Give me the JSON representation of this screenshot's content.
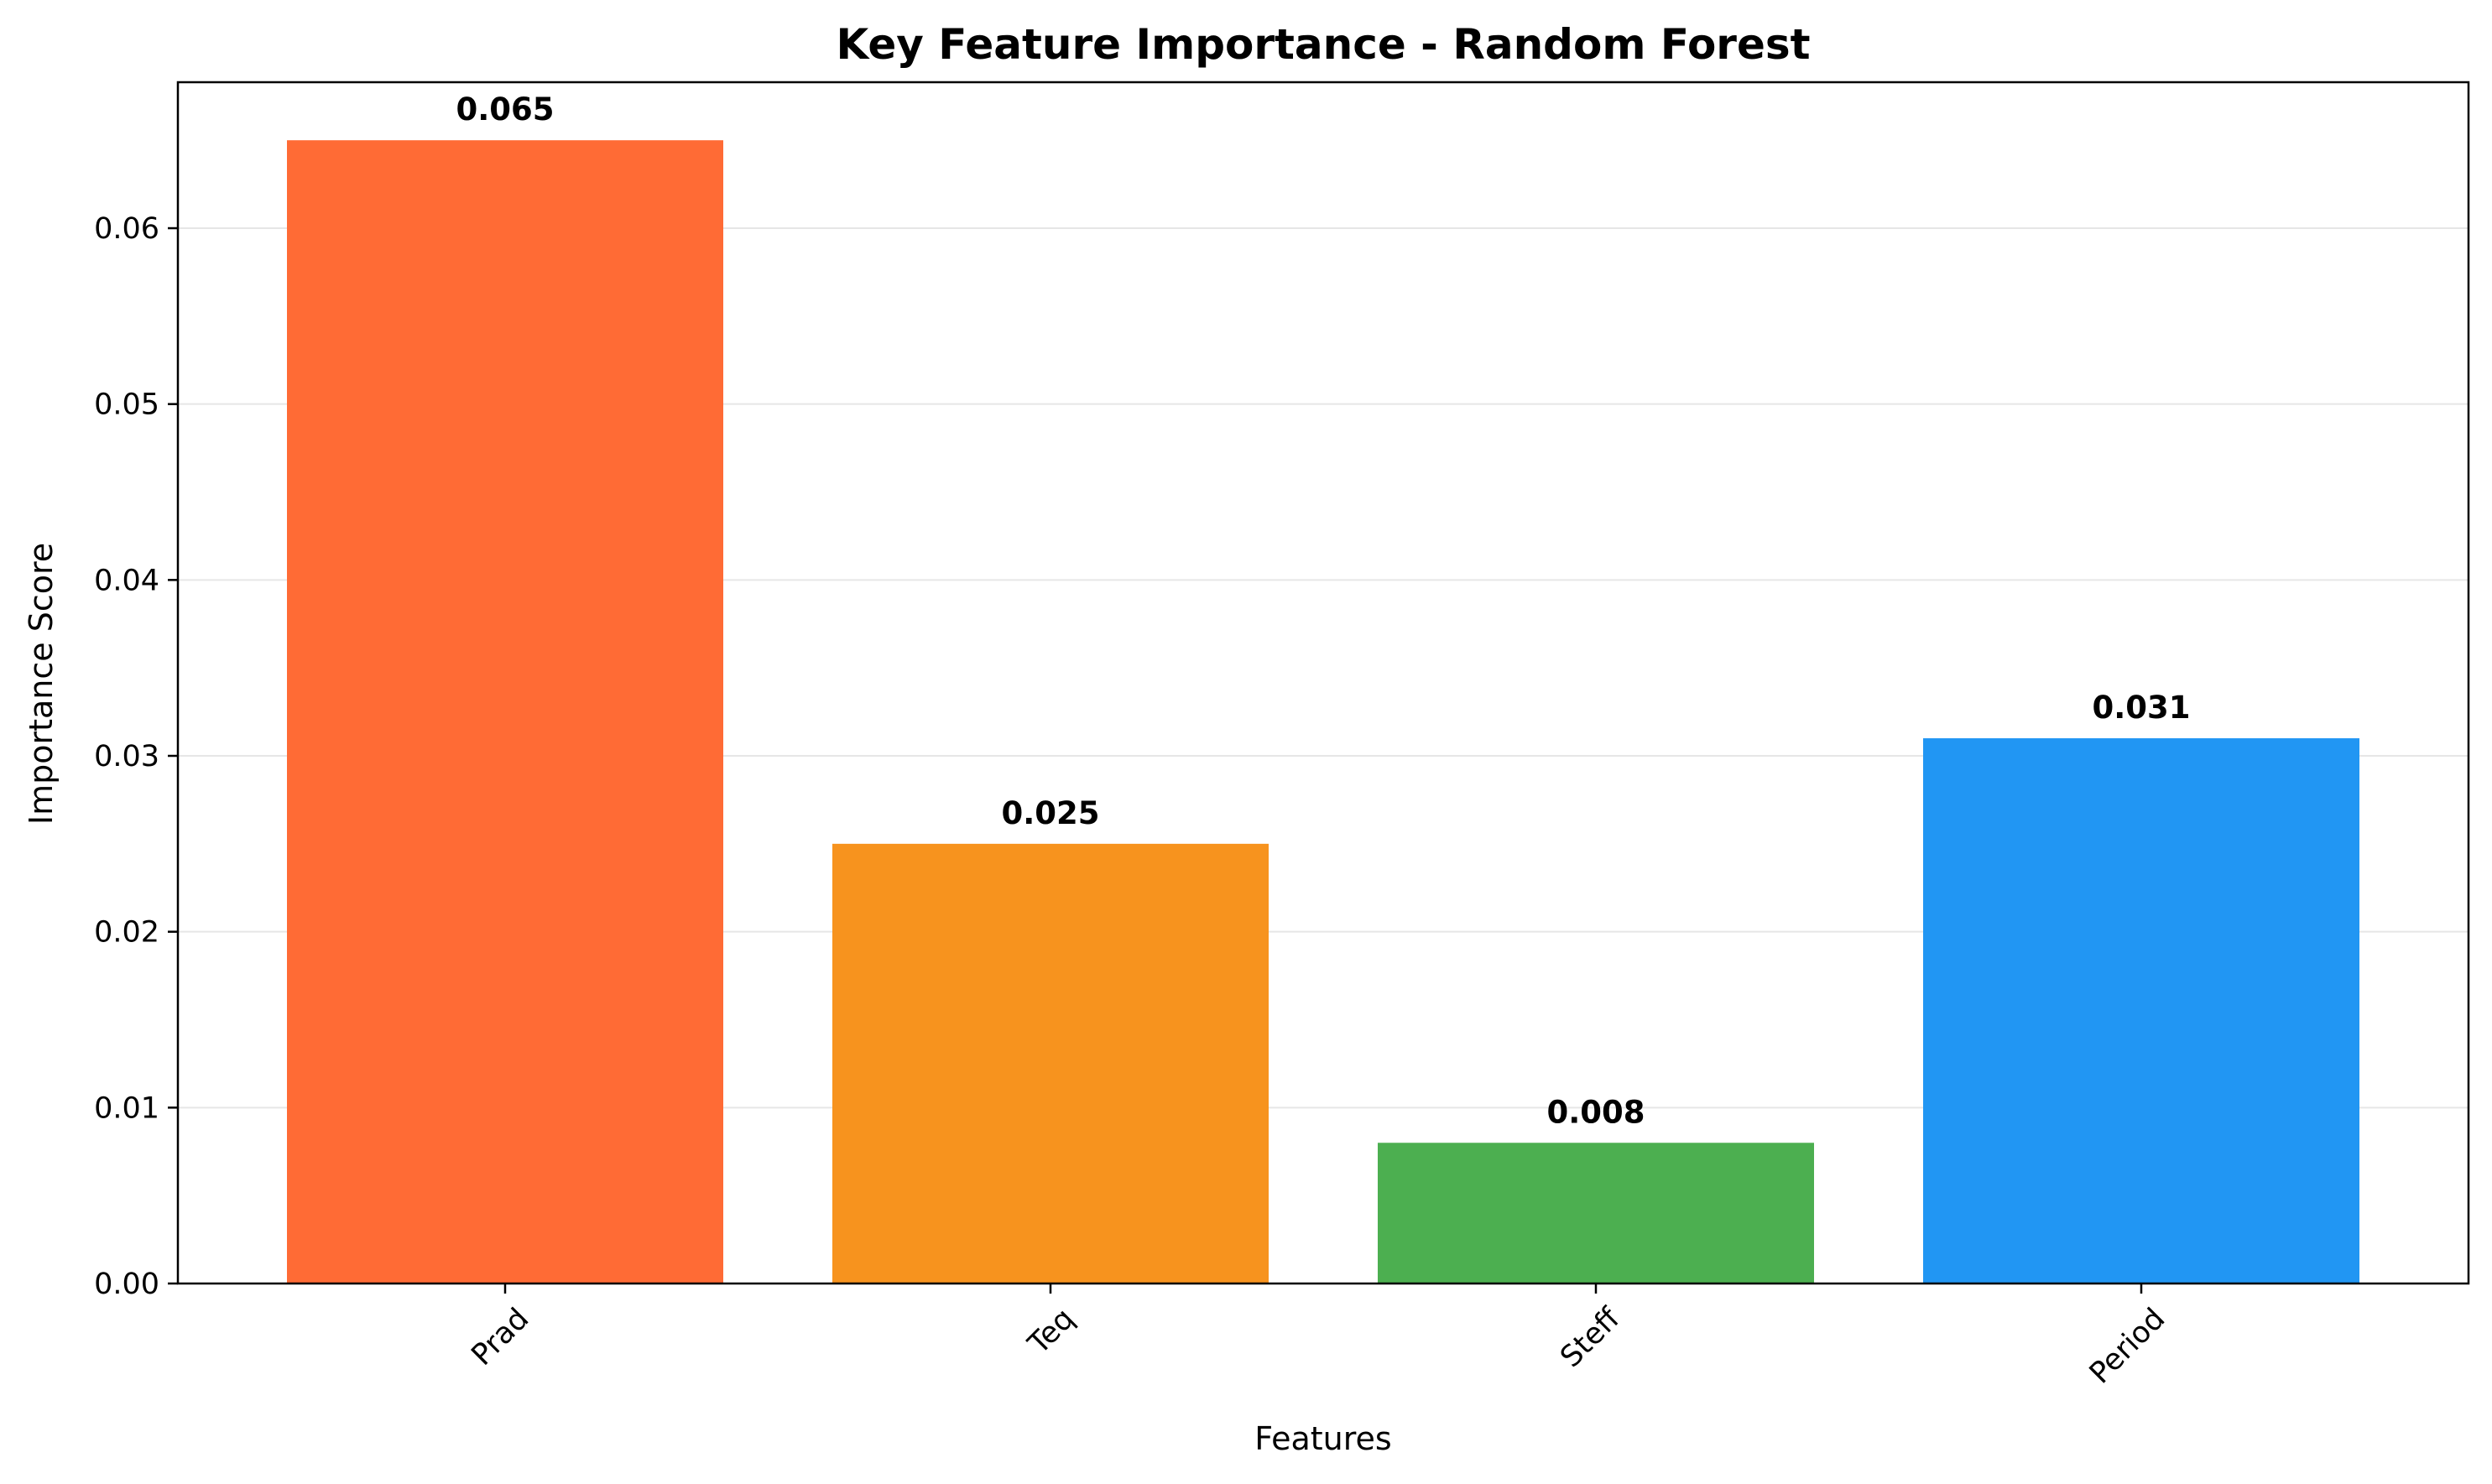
{
  "chart_data": {
    "type": "bar",
    "title": "Key Feature Importance - Random Forest",
    "xlabel": "Features",
    "ylabel": "Importance Score",
    "categories": [
      "Prad",
      "Teq",
      "Steff",
      "Period"
    ],
    "values": [
      0.065,
      0.025,
      0.008,
      0.031
    ],
    "value_labels": [
      "0.065",
      "0.025",
      "0.008",
      "0.031"
    ],
    "colors": [
      "#FF6B35",
      "#F7931E",
      "#4CAF50",
      "#2196F3"
    ],
    "ylim": [
      0,
      0.0683
    ],
    "yticks": [
      0.0,
      0.01,
      0.02,
      0.03,
      0.04,
      0.05,
      0.06
    ],
    "ytick_labels": [
      "0.00",
      "0.01",
      "0.02",
      "0.03",
      "0.04",
      "0.05",
      "0.06"
    ],
    "grid": "y",
    "xtick_rotation": 45
  }
}
